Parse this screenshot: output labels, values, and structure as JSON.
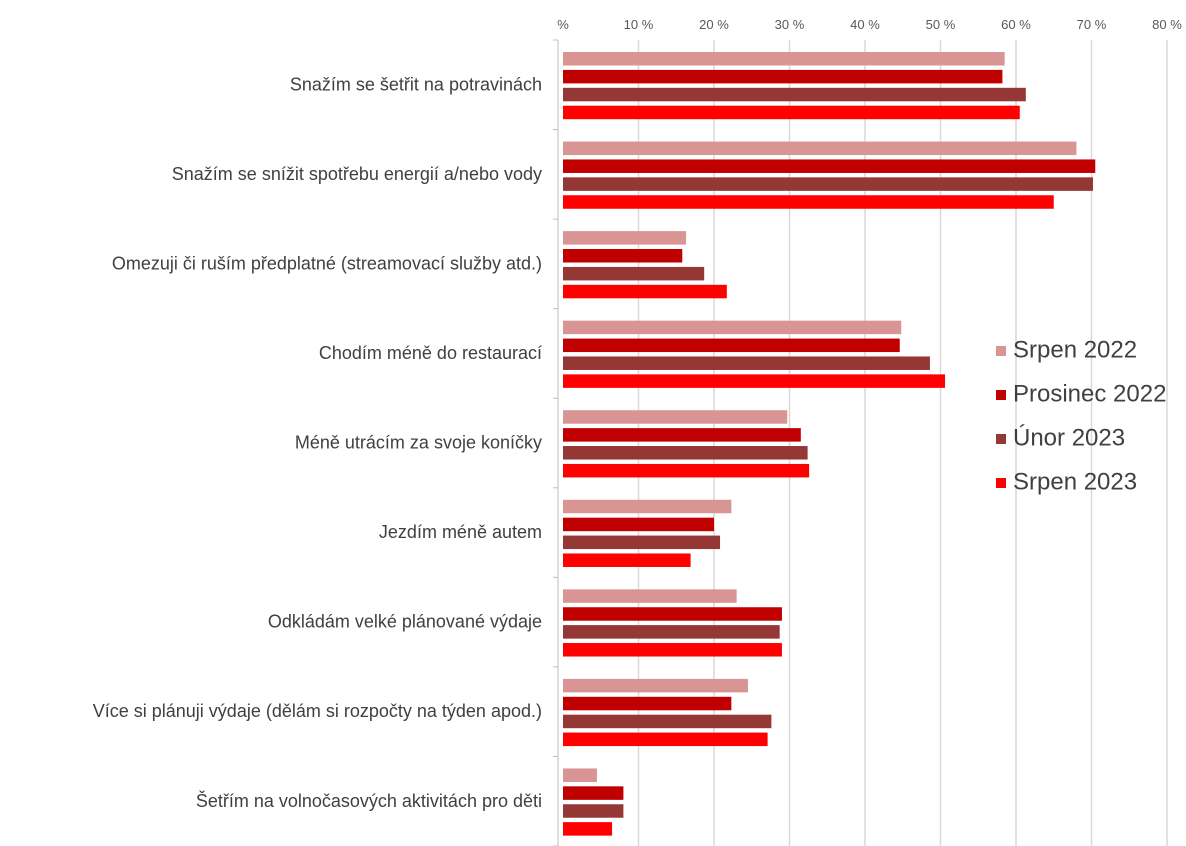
{
  "chart_data": {
    "type": "bar",
    "orientation": "horizontal",
    "title": "",
    "xlabel": "",
    "ylabel": "",
    "xlim": [
      0,
      80
    ],
    "x_ticks": [
      0,
      10,
      20,
      30,
      40,
      50,
      60,
      70,
      80
    ],
    "x_tick_labels": [
      "%",
      "10 %",
      "20 %",
      "30 %",
      "40 %",
      "50 %",
      "60 %",
      "70 %",
      "80 %"
    ],
    "x_axis_position": "top",
    "grid": "vertical",
    "legend_position": "right",
    "categories": [
      "Snažím se šetřit na potravinách",
      "Snažím se snížit spotřebu energií a/nebo vody",
      "Omezuji či ruším předplatné (streamovací služby atd.)",
      "Chodím méně do restaurací",
      "Méně utrácím za svoje koníčky",
      "Jezdím méně autem",
      "Odkládám velké plánované výdaje",
      "Více si plánuji výdaje (dělám si rozpočty na týden apod.)",
      "Šetřím na volnočasových aktivitách pro děti"
    ],
    "series": [
      {
        "name": "Srpen 2022",
        "color": "#d99594",
        "values": [
          58.5,
          68,
          16.3,
          44.8,
          29.7,
          22.3,
          23,
          24.5,
          4.5
        ]
      },
      {
        "name": "Prosinec 2022",
        "color": "#c00000",
        "values": [
          58.2,
          70.5,
          15.8,
          44.6,
          31.5,
          20,
          29,
          22.3,
          8
        ]
      },
      {
        "name": "Únor 2023",
        "color": "#953735",
        "values": [
          61.3,
          70.2,
          18.7,
          48.6,
          32.4,
          20.8,
          28.7,
          27.6,
          8
        ]
      },
      {
        "name": "Srpen 2023",
        "color": "#ff0000",
        "values": [
          60.5,
          65,
          21.7,
          50.6,
          32.6,
          16.9,
          29,
          27.1,
          6.5
        ]
      }
    ]
  }
}
